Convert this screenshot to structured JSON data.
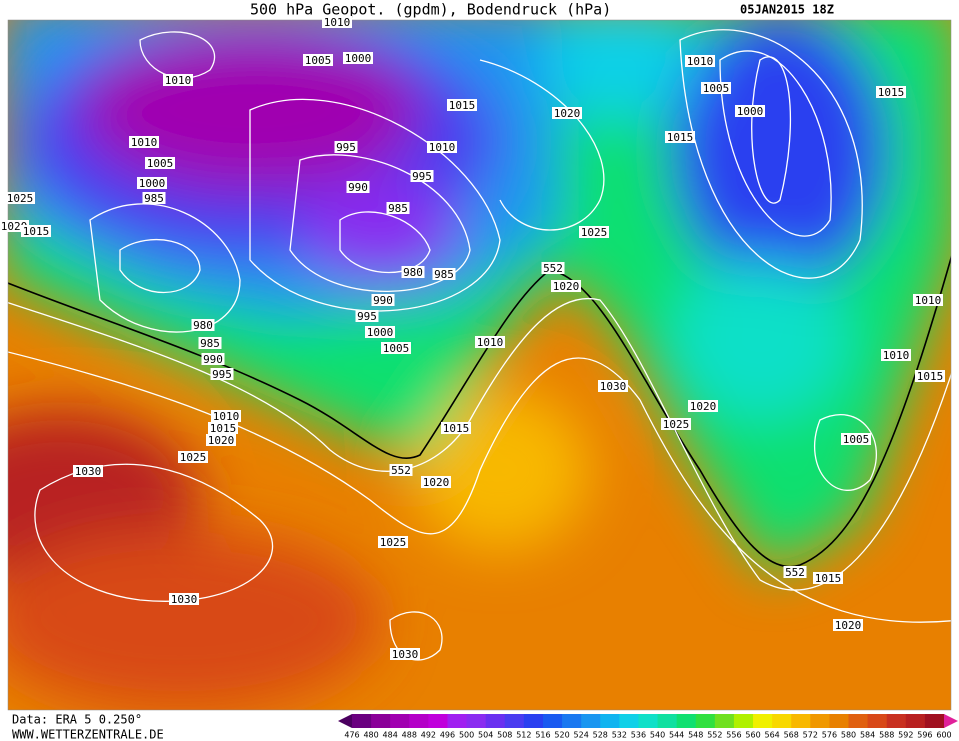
{
  "header": {
    "title": "500 hPa Geopot. (gpdm), Bodendruck (hPa)",
    "date": "05JAN2015 18Z"
  },
  "footer": {
    "source": "Data: ERA 5 0.250°",
    "website": "WWW.WETTERZENTRALE.DE"
  },
  "colorbar": {
    "levels": [
      "476",
      "480",
      "484",
      "488",
      "492",
      "496",
      "500",
      "504",
      "508",
      "512",
      "516",
      "520",
      "524",
      "528",
      "532",
      "536",
      "540",
      "544",
      "548",
      "552",
      "556",
      "560",
      "564",
      "568",
      "572",
      "576",
      "580",
      "584",
      "588",
      "592",
      "596",
      "600"
    ],
    "colors": [
      "#4b0060",
      "#6a0080",
      "#8a0099",
      "#a000b0",
      "#b400c8",
      "#c000dc",
      "#a020f0",
      "#8a2cf0",
      "#6a30f0",
      "#4a3cf0",
      "#2a40f0",
      "#1a5af0",
      "#1a78f0",
      "#1a96f0",
      "#10b4f0",
      "#10d0e8",
      "#10e0c8",
      "#10e0a0",
      "#10e070",
      "#30e040",
      "#70e020",
      "#b0f000",
      "#f0f000",
      "#f8d800",
      "#f8b800",
      "#f09800",
      "#e88000",
      "#e06010",
      "#d84818",
      "#c83020",
      "#b82020",
      "#a01020",
      "#e0209a"
    ]
  },
  "isobar_labels": [
    "1010",
    "1005",
    "1000",
    "1010",
    "1010",
    "1005",
    "1000",
    "985",
    "1025",
    "1020",
    "1015",
    "995",
    "990",
    "995",
    "985",
    "1015",
    "1010",
    "980",
    "985",
    "990",
    "995",
    "1000",
    "1005",
    "980",
    "985",
    "990",
    "995",
    "1010",
    "1015",
    "1020",
    "1025",
    "1030",
    "1010",
    "1015",
    "1020",
    "1025",
    "1030",
    "1030",
    "1020",
    "1025",
    "552",
    "1020",
    "1030",
    "1025",
    "1020",
    "1010",
    "1005",
    "1000",
    "1015",
    "1015",
    "1010",
    "1010",
    "1015",
    "1005",
    "552",
    "552",
    "1015",
    "1020"
  ]
}
